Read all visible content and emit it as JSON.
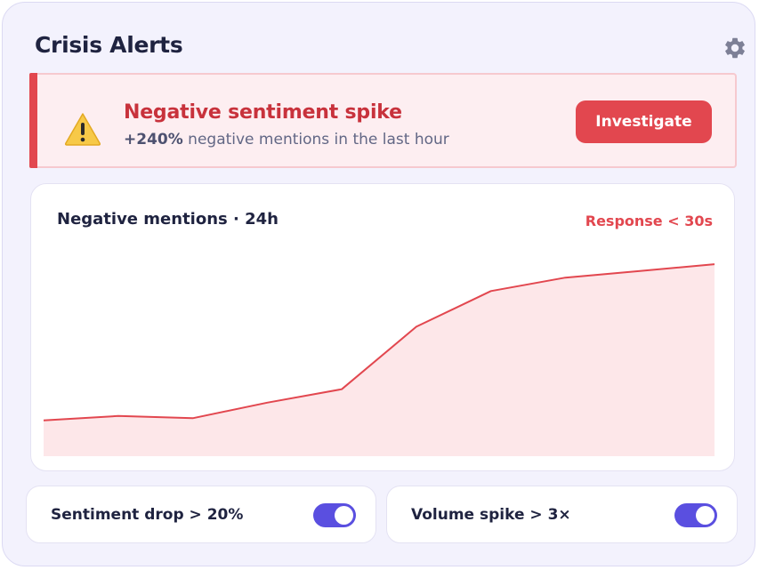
{
  "header": {
    "title": "Crisis Alerts",
    "settings_icon": "gear-icon"
  },
  "alert": {
    "icon": "warning-icon",
    "title": "Negative sentiment spike",
    "change": "+240%",
    "description": " negative mentions in the last hour",
    "action_label": "Investigate",
    "accent_color": "#e2474f"
  },
  "chart": {
    "title": "Negative mentions · 24h",
    "badge": "Response < 30s"
  },
  "chart_data": {
    "type": "area",
    "title": "Negative mentions · 24h",
    "x": [
      0,
      1,
      2,
      3,
      4,
      5,
      6,
      7,
      8,
      9
    ],
    "values": [
      8,
      9,
      8.5,
      12,
      15,
      29,
      37,
      40,
      41.5,
      43
    ],
    "ylim": [
      0,
      50
    ],
    "grid": false,
    "legend": "none",
    "line_color": "#e2474f",
    "fill_color": "#fde7e9"
  },
  "rules": [
    {
      "label": "Sentiment drop > 20%",
      "enabled": true
    },
    {
      "label": "Volume spike > 3×",
      "enabled": true
    }
  ],
  "colors": {
    "toggle_on": "#5a4fe0",
    "panel_bg": "#f3f2fd"
  }
}
